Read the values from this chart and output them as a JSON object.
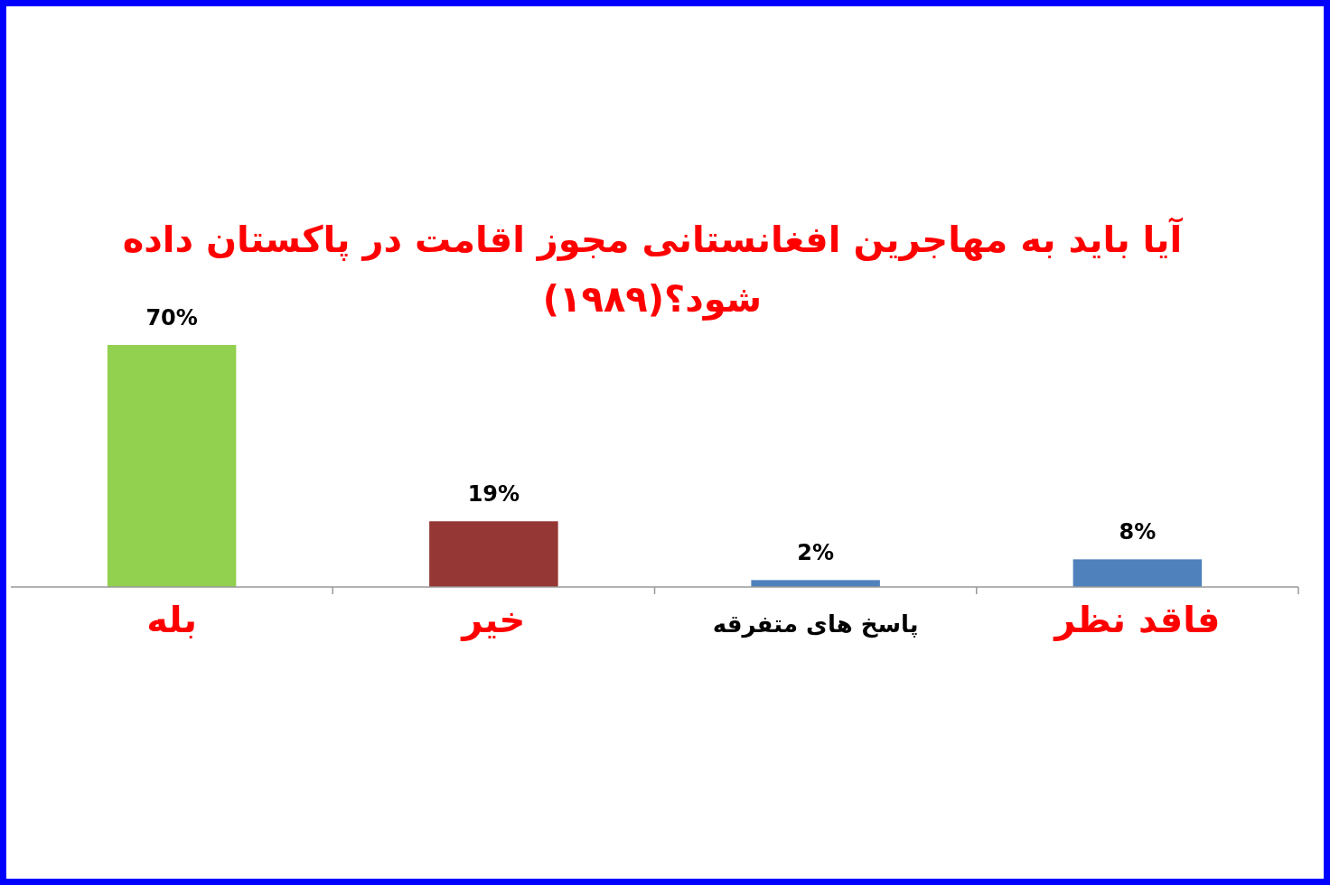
{
  "chart_data": {
    "type": "bar",
    "title": "آیا باید به مهاجرین افغانستانی مجوز اقامت در پاکستان داده شود؟(۱۹۸۹)",
    "categories": [
      "بله",
      "خیر",
      "پاسخ های متفرقه",
      "فاقد نظر"
    ],
    "values": [
      70,
      19,
      2,
      8
    ],
    "colors": [
      "#92d050",
      "#953735",
      "#4f81bd",
      "#4f81bd"
    ],
    "value_labels": [
      "70%",
      "19%",
      "2%",
      "8%"
    ]
  }
}
